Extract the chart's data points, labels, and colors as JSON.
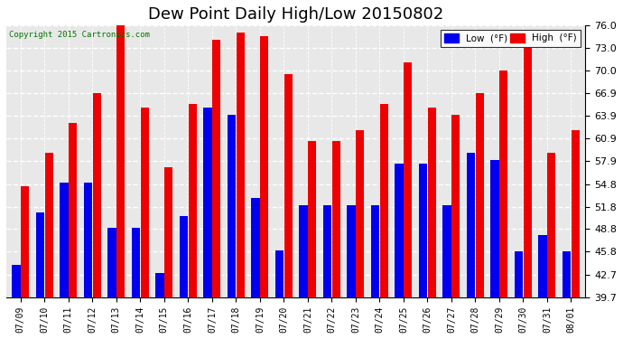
{
  "title": "Dew Point Daily High/Low 20150802",
  "copyright": "Copyright 2015 Cartronics.com",
  "dates": [
    "07/09",
    "07/10",
    "07/11",
    "07/12",
    "07/13",
    "07/14",
    "07/15",
    "07/16",
    "07/17",
    "07/18",
    "07/19",
    "07/20",
    "07/21",
    "07/22",
    "07/23",
    "07/24",
    "07/25",
    "07/26",
    "07/27",
    "07/28",
    "07/29",
    "07/30",
    "07/31",
    "08/01"
  ],
  "low": [
    44.0,
    51.0,
    55.0,
    55.0,
    49.0,
    49.0,
    43.0,
    50.6,
    65.0,
    64.0,
    53.0,
    46.0,
    52.0,
    52.0,
    52.0,
    52.0,
    57.5,
    57.5,
    52.0,
    59.0,
    58.0,
    45.8,
    48.0,
    45.8
  ],
  "high": [
    54.5,
    59.0,
    63.0,
    67.0,
    76.0,
    65.0,
    57.0,
    65.5,
    74.0,
    75.0,
    74.5,
    69.5,
    60.5,
    60.5,
    62.0,
    65.5,
    71.0,
    65.0,
    64.0,
    67.0,
    70.0,
    73.0,
    59.0,
    62.0
  ],
  "low_color": "#0000ee",
  "high_color": "#ee0000",
  "bg_color": "#ffffff",
  "plot_bg_color": "#e8e8e8",
  "grid_color": "#ffffff",
  "yticks": [
    39.7,
    42.7,
    45.8,
    48.8,
    51.8,
    54.8,
    57.9,
    60.9,
    63.9,
    66.9,
    70.0,
    73.0,
    76.0
  ],
  "ymin": 39.7,
  "ymax": 76.0,
  "title_fontsize": 13,
  "legend_low_label": "Low  (°F)",
  "legend_high_label": "High  (°F)"
}
